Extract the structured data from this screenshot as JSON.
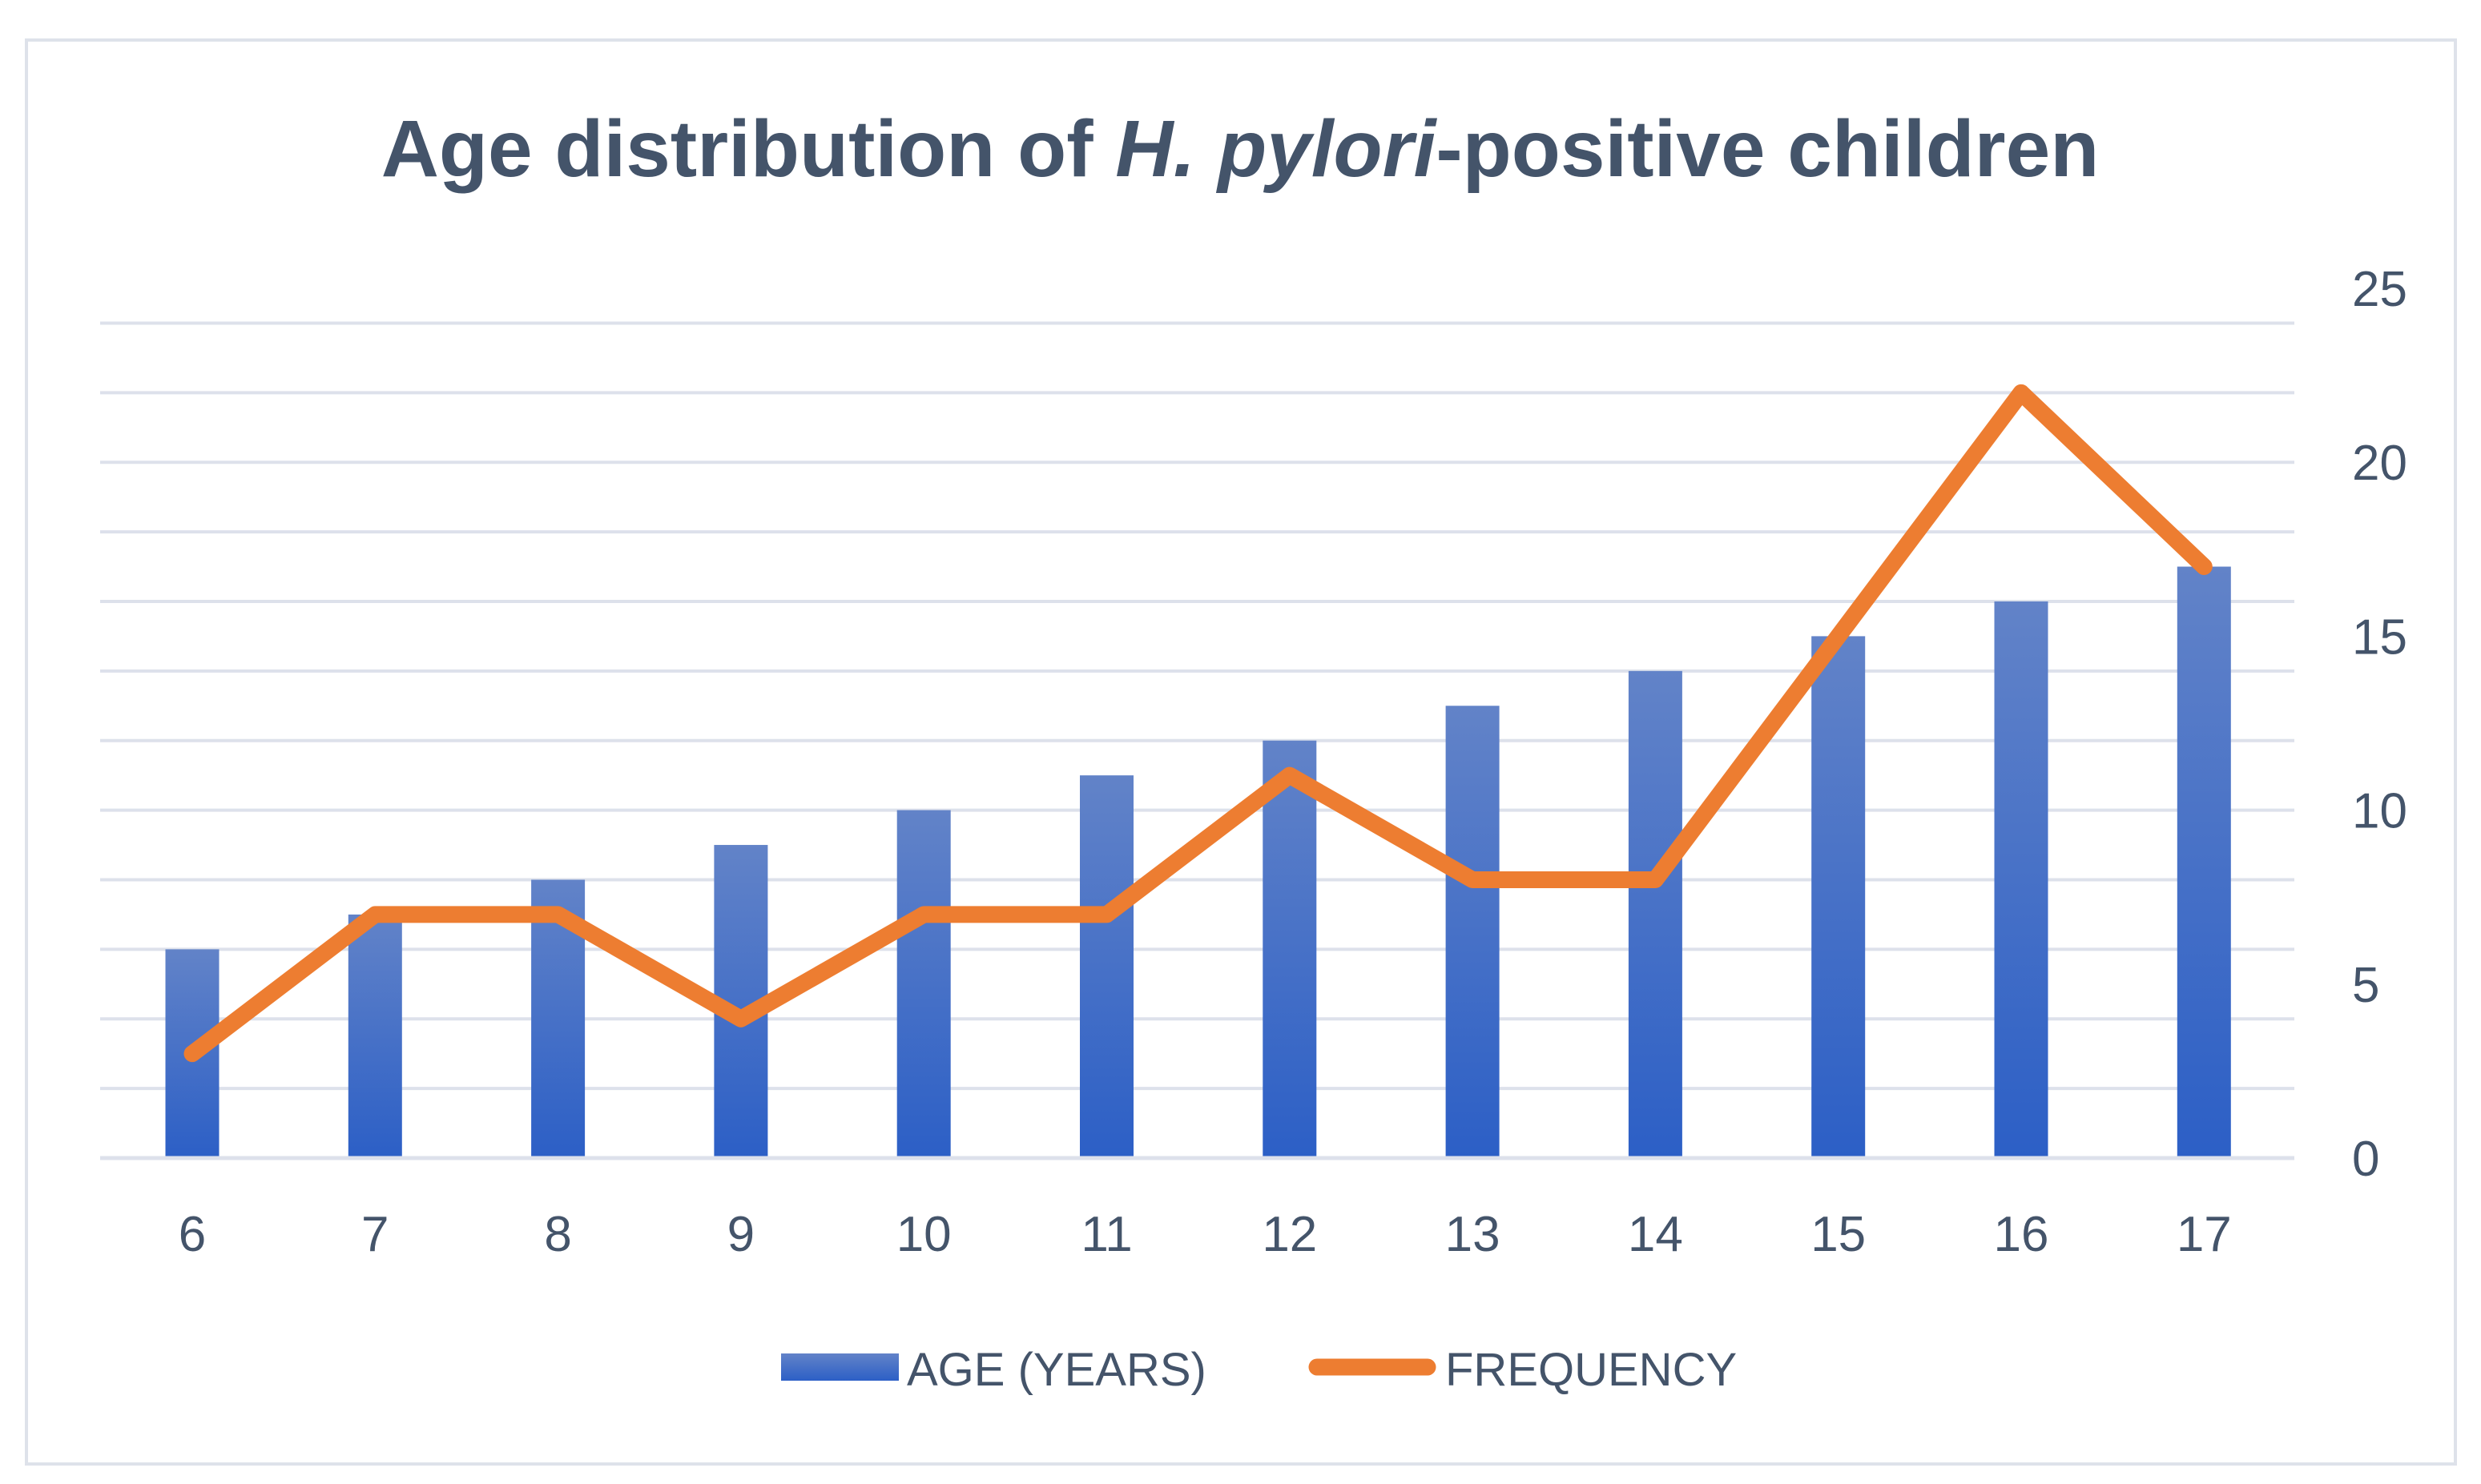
{
  "title": {
    "part1": "Age distribution of ",
    "italic": "H. pylori",
    "part2": "-positive children",
    "full": "Age distribution of H. pylori-positive children"
  },
  "colors": {
    "background": "#FFFFFF",
    "border": "#DEE2EA",
    "gridline": "#DDE1EB",
    "text": "#44546A",
    "bar_top": "#6283C8",
    "bar_bottom": "#2C5FC6",
    "line": "#ED7D31"
  },
  "legend": {
    "items": [
      {
        "label": "AGE (YEARS)",
        "type": "bar"
      },
      {
        "label": "FREQUENCY",
        "type": "line"
      }
    ],
    "position": "bottom"
  },
  "y_axis": {
    "side": "right",
    "min": 0,
    "max": 25,
    "ticks": [
      0,
      5,
      10,
      15,
      20,
      25
    ],
    "gridline_step": 2
  },
  "x_axis": {
    "categories": [
      "6",
      "7",
      "8",
      "9",
      "10",
      "11",
      "12",
      "13",
      "14",
      "15",
      "16",
      "17"
    ]
  },
  "chart_data": {
    "type": "combo",
    "title": "Age distribution of H. pylori-positive children",
    "categories": [
      6,
      7,
      8,
      9,
      10,
      11,
      12,
      13,
      14,
      15,
      16,
      17
    ],
    "series": [
      {
        "name": "AGE (YEARS)",
        "type": "bar",
        "values": [
          6,
          7,
          8,
          9,
          10,
          11,
          12,
          13,
          14,
          15,
          16,
          17
        ]
      },
      {
        "name": "FREQUENCY",
        "type": "line",
        "values": [
          3,
          7,
          7,
          4,
          7,
          7,
          11,
          8,
          8,
          15,
          22,
          17
        ]
      }
    ],
    "xlabel": "",
    "ylabel": "",
    "ylim": [
      0,
      25
    ],
    "grid": true,
    "legend_position": "bottom"
  }
}
